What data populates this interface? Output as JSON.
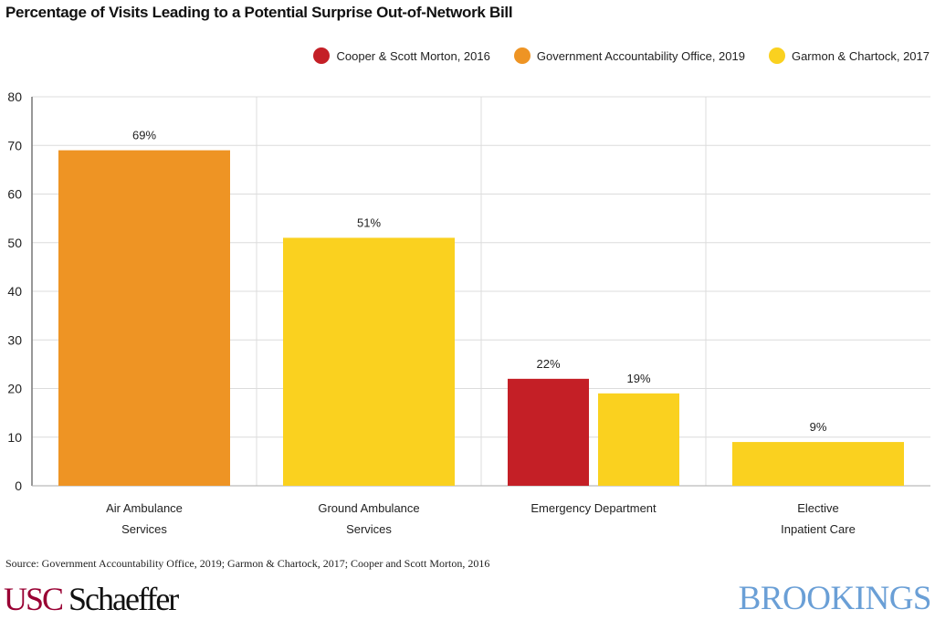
{
  "chart_data": {
    "type": "bar",
    "title": "Percentage of Visits Leading to a Potential Surprise Out-of-Network Bill",
    "categories": [
      "Air Ambulance\nServices",
      "Ground Ambulance\nServices",
      "Emergency Department",
      "Elective\nInpatient Care"
    ],
    "series": [
      {
        "name": "Cooper & Scott Morton, 2016",
        "color": "#c41f26",
        "values": [
          null,
          null,
          22,
          null
        ]
      },
      {
        "name": "Government Accountability Office, 2019",
        "color": "#ee9424",
        "values": [
          69,
          null,
          null,
          null
        ]
      },
      {
        "name": "Garmon & Chartock, 2017",
        "color": "#fad11f",
        "values": [
          null,
          51,
          19,
          9
        ]
      }
    ],
    "data_labels": [
      "69%",
      "51%",
      "22%",
      "19%",
      "9%"
    ],
    "ylim": [
      0,
      80
    ],
    "yticks": [
      0,
      10,
      20,
      30,
      40,
      50,
      60,
      70,
      80
    ],
    "grid": true,
    "legend": "top-right",
    "xlabel": "",
    "ylabel": ""
  },
  "source": "Source: Government Accountability Office, 2019; Garmon & Chartock, 2017; Cooper and Scott Morton, 2016",
  "logos": {
    "usc_a": "USC",
    "usc_b": "Schaeffer",
    "brookings": "BROOKINGS"
  }
}
